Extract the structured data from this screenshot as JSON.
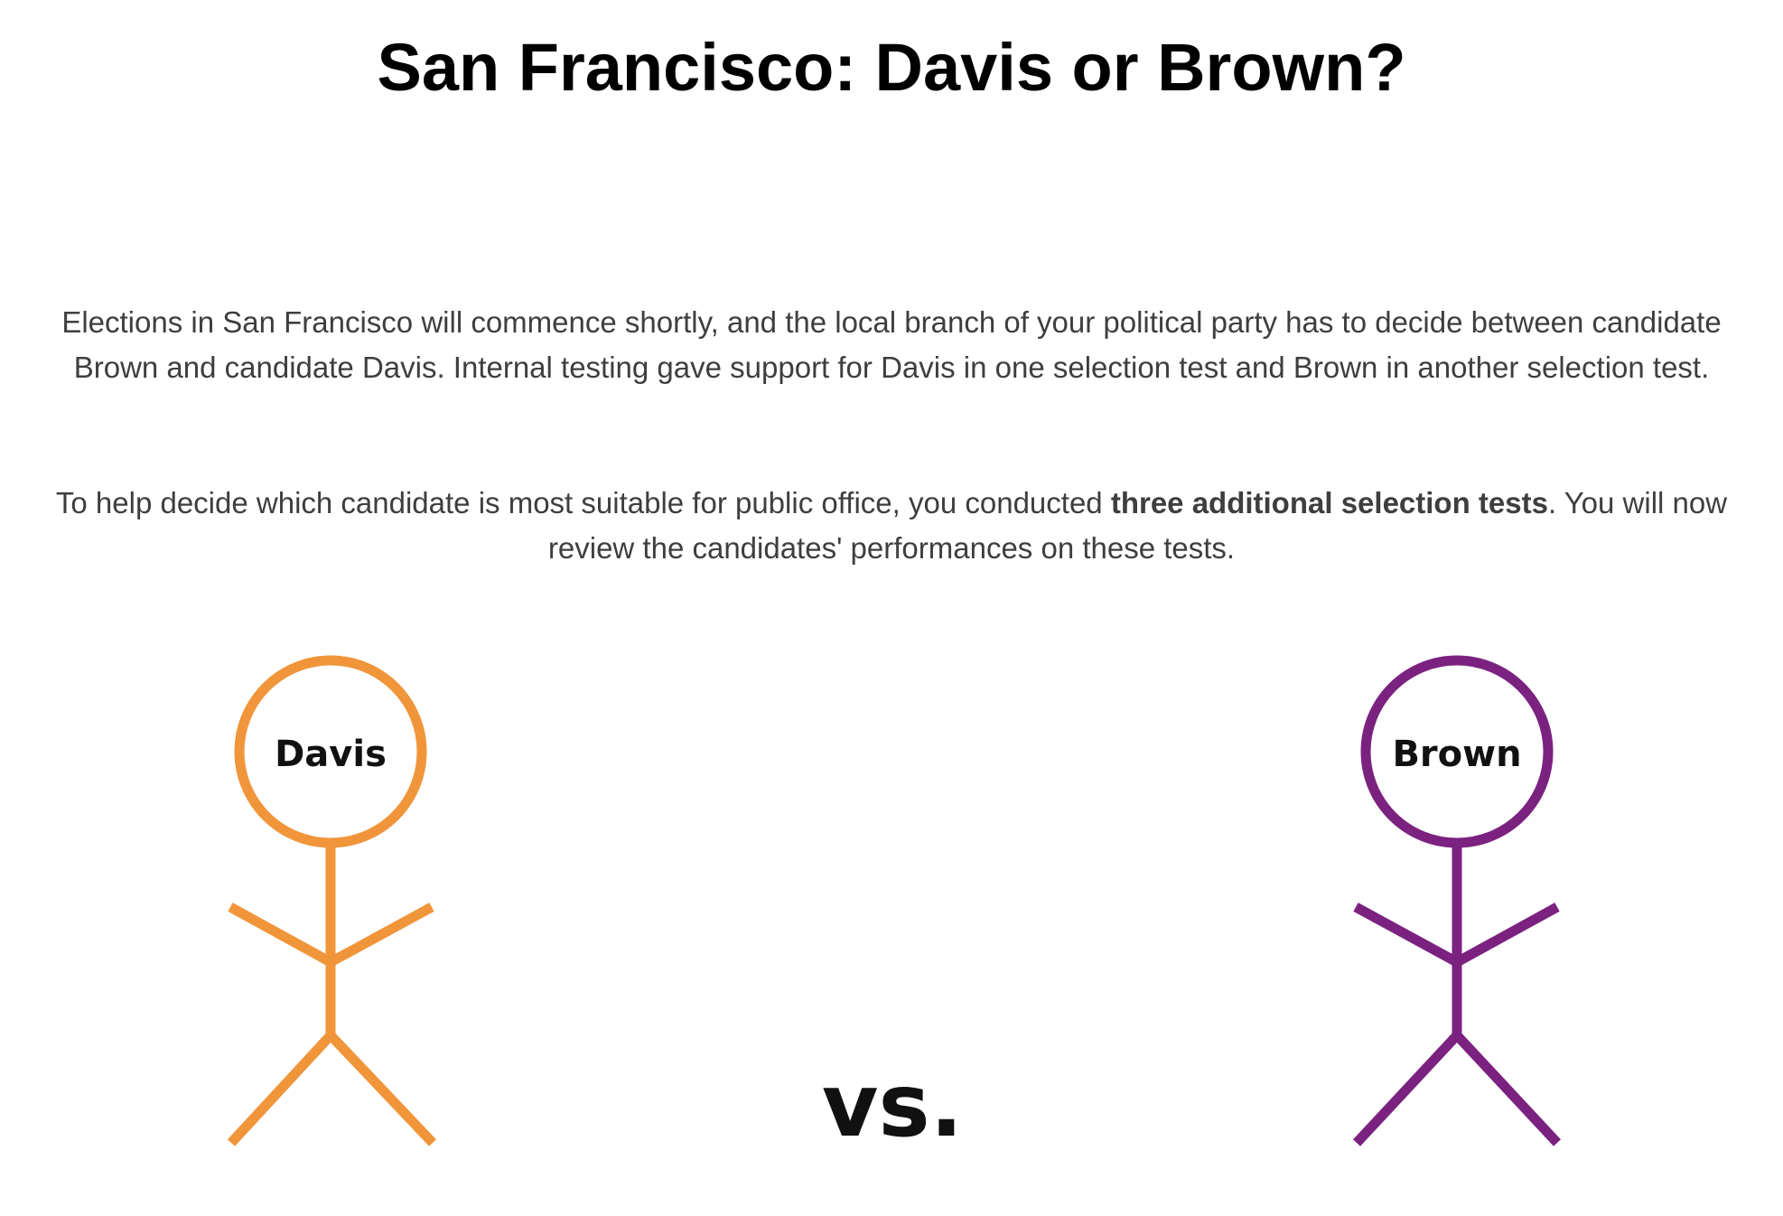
{
  "page": {
    "title": "San Francisco: Davis or Brown?",
    "paragraph1": "Elections in San Francisco will commence shortly, and the local branch of your political party has to decide between candidate Brown and candidate Davis. Internal testing gave support for Davis in one selection test and Brown in another selection test.",
    "paragraph2_before": "To help decide which candidate is most suitable for public office, you conducted ",
    "paragraph2_bold": "three additional selection tests",
    "paragraph2_after": ". You will now review the candidates' performances on these tests."
  },
  "candidates": {
    "left": {
      "name": "Davis",
      "color": "#f0953a"
    },
    "right": {
      "name": "Brown",
      "color": "#7b2280"
    }
  },
  "versus_label": "vs."
}
